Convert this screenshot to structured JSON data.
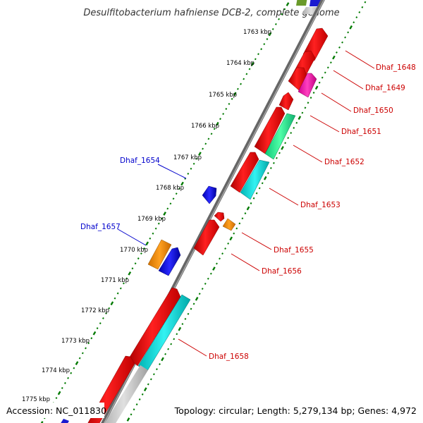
{
  "header": {
    "title": "Desulfitobacterium hafniense DCB-2, complete genome"
  },
  "footer": {
    "accession": "Accession: NC_011830",
    "topology": "Topology: circular; Length: 5,279,134 bp; Genes: 4,972"
  },
  "colors": {
    "backbone": "#808080",
    "forward_label": "#cc0000",
    "reverse_label": "#0000cc",
    "tick_dots": "#007a00"
  },
  "scale": {
    "unit": "kbp",
    "ticks": [
      "1763 kbp",
      "1764 kbp",
      "1765 kbp",
      "1766 kbp",
      "1767 kbp",
      "1768 kbp",
      "1769 kbp",
      "1770 kbp",
      "1771 kbp",
      "1772 kbp",
      "1773 kbp",
      "1774 kbp",
      "1775 kbp"
    ]
  },
  "genes": [
    {
      "name": "Dhaf_1648",
      "strand": "forward"
    },
    {
      "name": "Dhaf_1649",
      "strand": "forward"
    },
    {
      "name": "Dhaf_1650",
      "strand": "forward"
    },
    {
      "name": "Dhaf_1651",
      "strand": "forward"
    },
    {
      "name": "Dhaf_1652",
      "strand": "forward"
    },
    {
      "name": "Dhaf_1653",
      "strand": "forward"
    },
    {
      "name": "Dhaf_1654",
      "strand": "reverse"
    },
    {
      "name": "Dhaf_1655",
      "strand": "forward"
    },
    {
      "name": "Dhaf_1656",
      "strand": "forward"
    },
    {
      "name": "Dhaf_1657",
      "strand": "reverse"
    },
    {
      "name": "Dhaf_1658",
      "strand": "forward"
    }
  ]
}
